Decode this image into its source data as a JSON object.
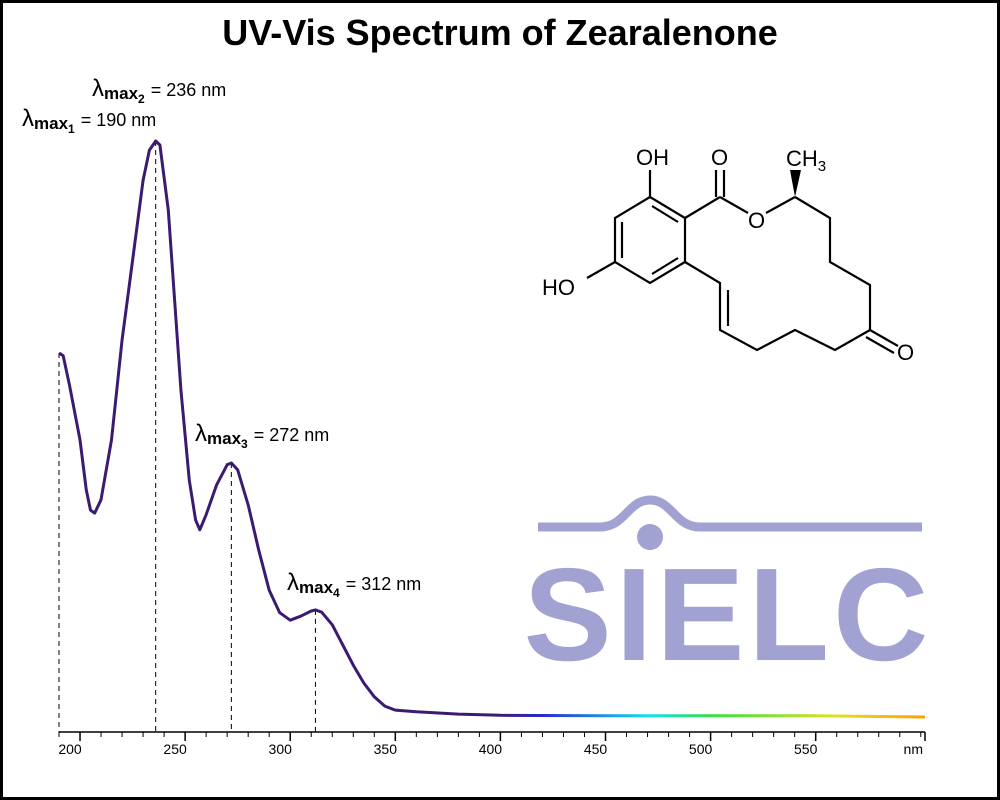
{
  "chart_data": {
    "type": "line",
    "title": "UV-Vis Spectrum of Zearalenone",
    "x_unit": "nm",
    "x": [
      190,
      192,
      195,
      200,
      203,
      205,
      207,
      210,
      215,
      220,
      225,
      230,
      233,
      236,
      238,
      242,
      245,
      248,
      252,
      255,
      257,
      260,
      265,
      270,
      272,
      275,
      280,
      285,
      290,
      295,
      300,
      305,
      310,
      312,
      315,
      320,
      325,
      330,
      335,
      340,
      345,
      350,
      360,
      380,
      400,
      450,
      500,
      550,
      602
    ],
    "values": [
      0.632,
      0.627,
      0.576,
      0.481,
      0.394,
      0.359,
      0.354,
      0.377,
      0.481,
      0.655,
      0.793,
      0.932,
      0.984,
      1.0,
      0.993,
      0.88,
      0.724,
      0.568,
      0.411,
      0.342,
      0.325,
      0.351,
      0.403,
      0.438,
      0.441,
      0.429,
      0.368,
      0.29,
      0.22,
      0.181,
      0.168,
      0.175,
      0.184,
      0.186,
      0.182,
      0.16,
      0.125,
      0.09,
      0.059,
      0.035,
      0.019,
      0.012,
      0.009,
      0.005,
      0.003,
      0.002,
      0.002,
      0.002,
      0
    ],
    "line_gradient": [
      {
        "x": 190,
        "color": "#3b1a72"
      },
      {
        "x": 400,
        "color": "#3b1a72"
      },
      {
        "x": 420,
        "color": "#2a2ad0"
      },
      {
        "x": 470,
        "color": "#10e0f0"
      },
      {
        "x": 500,
        "color": "#30e040"
      },
      {
        "x": 560,
        "color": "#e0e020"
      },
      {
        "x": 602,
        "color": "#ffa000"
      }
    ],
    "xlim": [
      190,
      602
    ],
    "ylim": [
      0,
      1
    ],
    "xticks": [
      200,
      250,
      300,
      350,
      400,
      450,
      500,
      550
    ],
    "xminorticks": [
      190,
      210,
      220,
      230,
      240,
      260,
      270,
      280,
      290,
      310,
      320,
      330,
      340,
      360,
      370,
      380,
      390,
      410,
      420,
      430,
      440,
      460,
      470,
      480,
      490,
      510,
      520,
      530,
      540,
      560,
      570,
      580,
      590,
      600
    ],
    "peaks": [
      {
        "x": 190,
        "symbol": "λ",
        "subscript": "max",
        "index": "1",
        "label": "= 190 nm"
      },
      {
        "x": 236,
        "symbol": "λ",
        "subscript": "max",
        "index": "2",
        "label": "= 236 nm"
      },
      {
        "x": 272,
        "symbol": "λ",
        "subscript": "max",
        "index": "3",
        "label": "= 272 nm"
      },
      {
        "x": 312,
        "symbol": "λ",
        "subscript": "max",
        "index": "4",
        "label": "= 312 nm"
      }
    ],
    "structure_labels": [
      "OH",
      "O",
      "CH",
      "3",
      "O",
      "HO",
      "O"
    ],
    "logo": "SIELC"
  }
}
